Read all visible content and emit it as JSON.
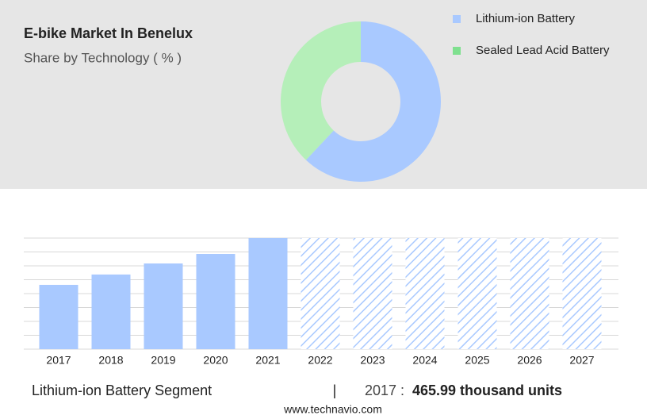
{
  "chart_data": [
    {
      "type": "pie",
      "title": "E-bike Market In Benelux",
      "subtitle": "Share by Technology ( % )",
      "donut": true,
      "categories": [
        "Lithium-ion Battery",
        "Sealed Lead Acid Battery"
      ],
      "values": [
        62,
        38
      ],
      "colors": [
        "#a9c9ff",
        "#b5efb9"
      ],
      "legend_colors": [
        "#a9c9ff",
        "#7fe08f"
      ]
    },
    {
      "type": "bar",
      "categories": [
        "2017",
        "2018",
        "2019",
        "2020",
        "2021",
        "2022",
        "2023",
        "2024",
        "2025",
        "2026",
        "2027"
      ],
      "values": [
        465.99,
        541,
        621,
        690,
        805,
        null,
        null,
        null,
        null,
        null,
        null
      ],
      "color": "#a9c9ff",
      "ylim": [
        0,
        805
      ],
      "grid": true
    }
  ],
  "footer": {
    "segment": "Lithium-ion Battery Segment",
    "separator": "|",
    "year": "2017 :",
    "value": "465.99 thousand units"
  },
  "source": "www.technavio.com"
}
